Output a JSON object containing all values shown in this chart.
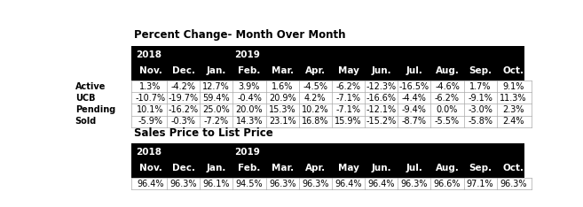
{
  "title1": "Percent Change- Month Over Month",
  "title2": "Sales Price to List Price",
  "col_headers": [
    "Nov.",
    "Dec.",
    "Jan.",
    "Feb.",
    "Mar.",
    "Apr.",
    "May",
    "Jun.",
    "Jul.",
    "Aug.",
    "Sep.",
    "Oct."
  ],
  "row_labels_t1": [
    "Active",
    "UCB",
    "Pending",
    "Sold"
  ],
  "table1_data": [
    [
      "1.3%",
      "-4.2%",
      "12.7%",
      "3.9%",
      "1.6%",
      "-4.5%",
      "-6.2%",
      "-12.3%",
      "-16.5%",
      "-4.6%",
      "1.7%",
      "9.1%"
    ],
    [
      "-10.7%",
      "-19.7%",
      "59.4%",
      "-0.4%",
      "20.9%",
      "4.2%",
      "-7.1%",
      "-16.6%",
      "-4.4%",
      "-6.2%",
      "-9.1%",
      "11.3%"
    ],
    [
      "10.1%",
      "-16.2%",
      "25.0%",
      "20.0%",
      "15.3%",
      "10.2%",
      "-7.1%",
      "-12.1%",
      "-9.4%",
      "0.0%",
      "-3.0%",
      "2.3%"
    ],
    [
      "-5.9%",
      "-0.3%",
      "-7.2%",
      "14.3%",
      "23.1%",
      "16.8%",
      "15.9%",
      "-15.2%",
      "-8.7%",
      "-5.5%",
      "-5.8%",
      "2.4%"
    ]
  ],
  "table2_data": [
    [
      "96.4%",
      "96.3%",
      "96.1%",
      "94.5%",
      "96.3%",
      "96.3%",
      "96.4%",
      "96.4%",
      "96.3%",
      "96.6%",
      "97.1%",
      "96.3%"
    ]
  ],
  "header_bg": "#000000",
  "header_fg": "#ffffff",
  "cell_border": "#aaaaaa",
  "bg_color": "#ffffff",
  "font_size_title": 8.5,
  "font_size_header": 7.5,
  "font_size_data": 7.0
}
